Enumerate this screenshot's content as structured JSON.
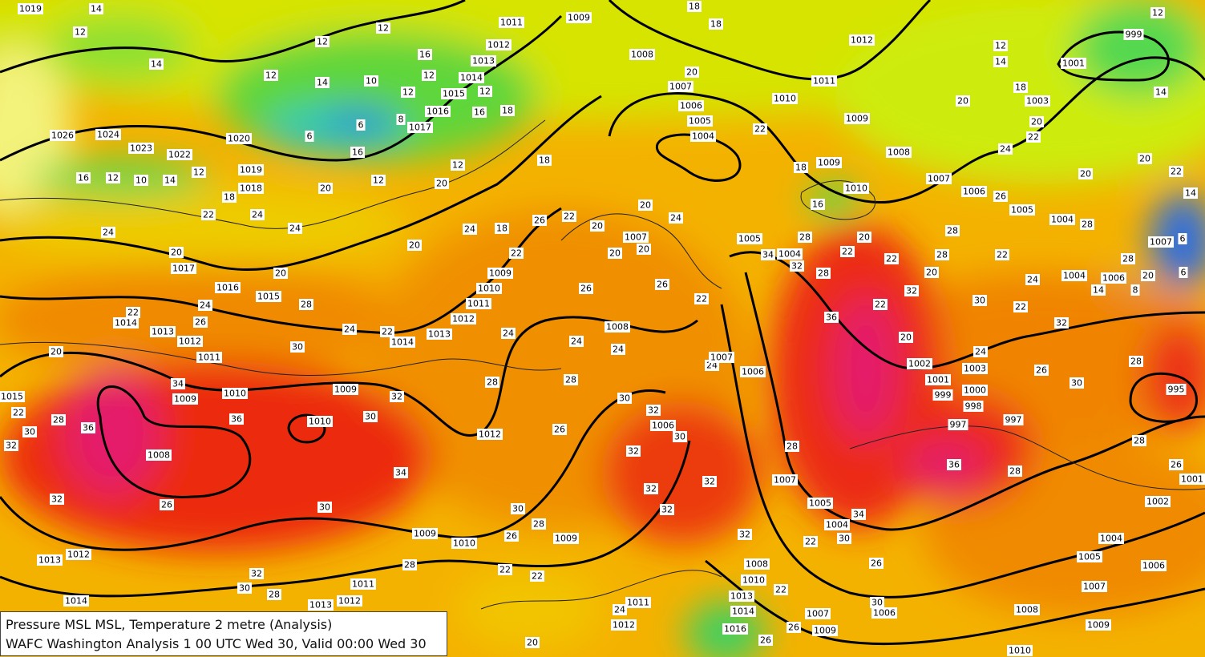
{
  "caption": {
    "line1": "Pressure MSL  MSL, Temperature  2 metre (Analysis)",
    "line2": "WAFC Washington Analysis 1 00 UTC Wed 30, Valid 00:00 Wed 30"
  },
  "isobar_labels": [
    1019,
    1026,
    1024,
    1023,
    1022,
    1020,
    1019,
    1018,
    1017,
    1016,
    1015,
    1014,
    1013,
    1012,
    1011,
    1010,
    1009,
    1008,
    1009,
    1010,
    1014,
    1013,
    1012,
    1011,
    1010,
    1009,
    1012,
    1011,
    1012,
    1013,
    1014,
    1015,
    1016,
    1017,
    1009,
    1008,
    1007,
    1006,
    1005,
    1004,
    1012,
    1011,
    1010,
    1009,
    1008,
    1009,
    1010,
    1007,
    1006,
    1005,
    1004,
    1003,
    1001,
    999,
    1007,
    1006,
    1004,
    1005,
    1004,
    1008,
    1007,
    1006,
    1006,
    1007,
    1005,
    1004,
    1002,
    1001,
    999,
    1000,
    998,
    997,
    997,
    1003,
    995,
    1002,
    1001,
    1004,
    1005,
    1006,
    1007,
    1008,
    1009,
    1010,
    1006,
    1007,
    1009,
    1016,
    1014,
    1013,
    1010,
    1008,
    1009,
    1010,
    1009,
    1011,
    1012,
    1013,
    1012,
    1014,
    1013,
    1012,
    1011,
    1015,
    1007
  ],
  "temperature_labels": [
    14,
    12,
    14,
    12,
    14,
    10,
    12,
    16,
    12,
    12,
    12,
    8,
    6,
    6,
    16,
    12,
    20,
    18,
    22,
    24,
    24,
    20,
    20,
    24,
    28,
    22,
    26,
    20,
    16,
    12,
    10,
    14,
    12,
    24,
    20,
    22,
    24,
    30,
    34,
    36,
    36,
    32,
    30,
    34,
    30,
    26,
    32,
    32,
    28,
    30,
    22,
    32,
    30,
    28,
    28,
    26,
    28,
    30,
    22,
    22,
    24,
    20,
    28,
    26,
    24,
    24,
    28,
    26,
    24,
    30,
    32,
    30,
    32,
    32,
    32,
    32,
    32,
    28,
    24,
    22,
    26,
    24,
    20,
    20,
    20,
    20,
    22,
    26,
    18,
    22,
    24,
    18,
    18,
    16,
    12,
    12,
    20,
    20,
    18,
    18,
    22,
    18,
    16,
    20,
    22,
    22,
    28,
    20,
    32,
    22,
    20,
    24,
    30,
    22,
    24,
    28,
    28,
    28,
    20,
    14,
    8,
    6,
    6,
    14,
    22,
    20,
    20,
    24,
    20,
    18,
    20,
    22,
    14,
    12,
    14,
    12,
    26,
    22,
    32,
    28,
    30,
    26,
    28,
    26,
    28,
    36,
    36,
    34,
    32,
    28,
    28,
    22,
    30,
    34,
    26,
    30,
    22,
    26,
    26
  ]
}
